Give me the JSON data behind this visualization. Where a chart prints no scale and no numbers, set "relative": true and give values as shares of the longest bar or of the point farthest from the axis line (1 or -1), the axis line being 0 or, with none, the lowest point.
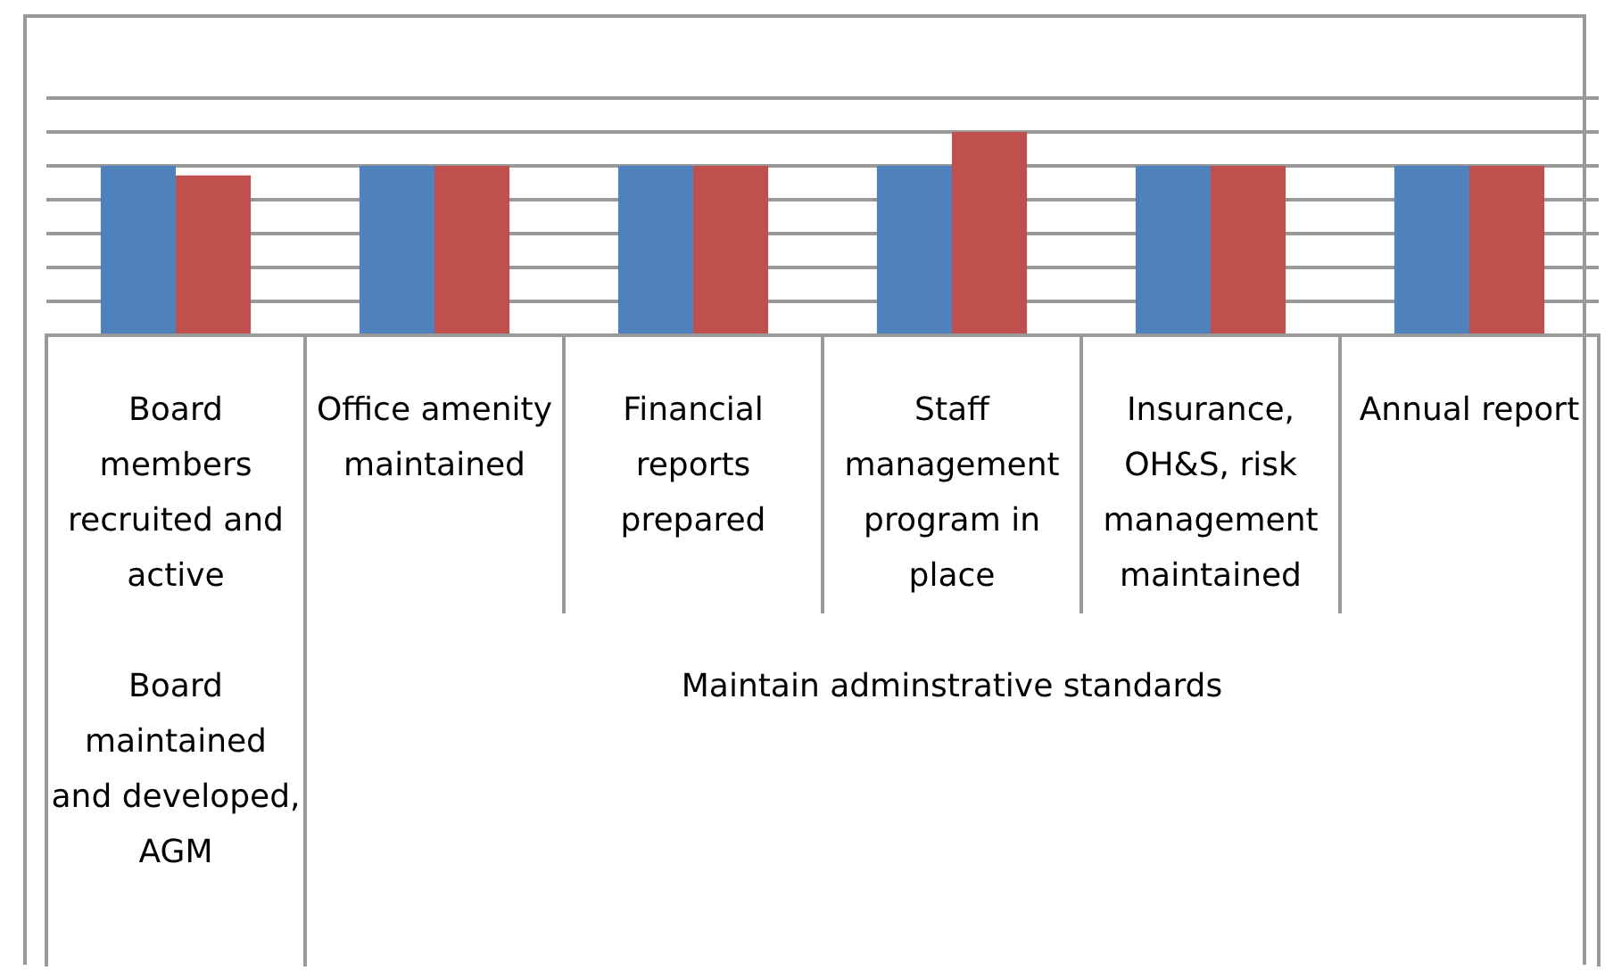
{
  "chart_data": {
    "type": "bar",
    "relative": true,
    "grid": "y",
    "legend": false,
    "categories": [
      "Board members recruited and active",
      "Office amenity maintained",
      "Financial reports prepared",
      "Staff management program in place",
      "Insurance, OH&S, risk management maintained",
      "Annual report"
    ],
    "series": [
      {
        "color": "#4f81bd",
        "values": [
          0.833,
          0.833,
          0.833,
          0.833,
          0.833,
          0.833
        ]
      },
      {
        "color": "#c0504d",
        "values": [
          0.786,
          0.833,
          0.833,
          1,
          0.833,
          0.833
        ]
      }
    ],
    "annotations": [
      "Board maintained and developed, AGM",
      "Maintain adminstrative standards"
    ]
  }
}
